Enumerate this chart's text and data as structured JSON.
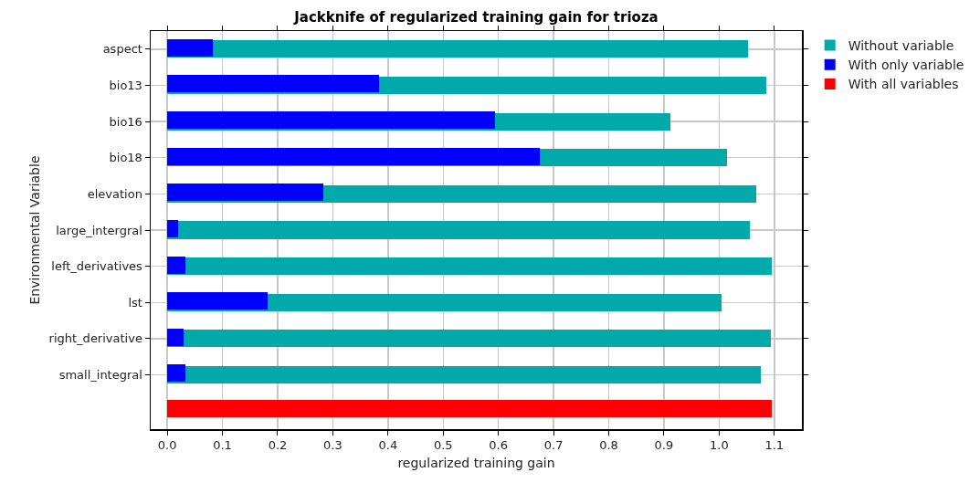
{
  "chart_data": {
    "type": "bar",
    "orientation": "horizontal",
    "title": "Jackknife of regularized training gain for trioza",
    "xlabel": "regularized training gain",
    "ylabel": "Environmental Variable",
    "categories": [
      "aspect",
      "bio13",
      "bio16",
      "bio18",
      "elevation",
      "large_intergral",
      "left_derivatives",
      "lst",
      "right_derivative",
      "small_integral",
      null
    ],
    "series": [
      {
        "name": "Without variable",
        "color": "#00aaaa",
        "values": [
          1.053,
          1.085,
          0.912,
          1.015,
          1.068,
          1.055,
          1.096,
          1.005,
          1.093,
          1.075,
          null
        ]
      },
      {
        "name": "With only variable",
        "color": "#0000ff",
        "values": [
          0.083,
          0.383,
          0.594,
          0.675,
          0.282,
          0.02,
          0.033,
          0.182,
          0.03,
          0.033,
          null
        ]
      },
      {
        "name": "With all variables",
        "color": "#ff0000",
        "values": [
          null,
          null,
          null,
          null,
          null,
          null,
          null,
          null,
          null,
          null,
          1.096
        ]
      }
    ],
    "xlim": [
      -0.03,
      1.15
    ],
    "xticks": [
      {
        "value": 0,
        "label": "0.0"
      },
      0.1,
      0.2,
      0.3,
      0.4,
      0.5,
      0.6,
      0.7,
      0.8,
      0.9,
      {
        "value": 1,
        "label": "1.0"
      },
      1.1
    ],
    "grid": true,
    "legend": "top right"
  }
}
